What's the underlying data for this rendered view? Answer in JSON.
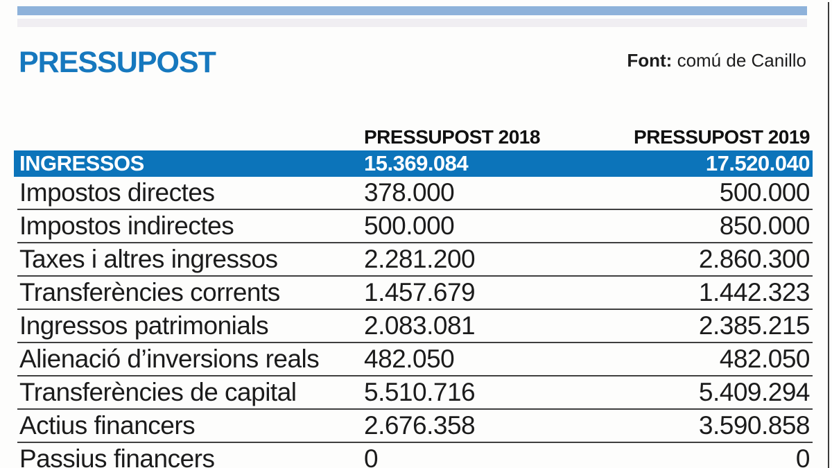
{
  "header": {
    "title": "PRESSUPOST",
    "source_label": "Font:",
    "source_value": " comú de Canillo"
  },
  "table": {
    "col_2018": "PRESSUPOST 2018",
    "col_2019": "PRESSUPOST 2019",
    "total_row": {
      "label": "INGRESSOS",
      "y2018": "15.369.084",
      "y2019": "17.520.040"
    },
    "rows": [
      {
        "label": "Impostos directes",
        "y2018": "378.000",
        "y2019": "500.000"
      },
      {
        "label": "Impostos indirectes",
        "y2018": "500.000",
        "y2019": "850.000"
      },
      {
        "label": "Taxes i altres ingressos",
        "y2018": "2.281.200",
        "y2019": "2.860.300"
      },
      {
        "label": "Transferències corrents",
        "y2018": "1.457.679",
        "y2019": "1.442.323"
      },
      {
        "label": "Ingressos patrimonials",
        "y2018": "2.083.081",
        "y2019": "2.385.215"
      },
      {
        "label": "Alienació d’inversions reals",
        "y2018": "482.050",
        "y2019": "482.050"
      },
      {
        "label": "Transferències de capital",
        "y2018": "5.510.716",
        "y2019": "5.409.294"
      },
      {
        "label": "Actius financers",
        "y2018": "2.676.358",
        "y2019": "3.590.858"
      },
      {
        "label": "Passius financers",
        "y2018": "0",
        "y2019": "0"
      }
    ]
  },
  "colors": {
    "title_blue": "#1678be",
    "row_blue": "#0c74ba",
    "top_bar_blue": "#8eb2da",
    "top_bar_grey": "#f0eef2",
    "separator": "#3f3f3f",
    "text": "#1b1b1b"
  },
  "chart_data": {
    "type": "table",
    "title": "PRESSUPOST",
    "source": "Font: comú de Canillo",
    "columns": [
      "",
      "PRESSUPOST 2018",
      "PRESSUPOST 2019"
    ],
    "rows": [
      [
        "INGRESSOS",
        15369084,
        17520040
      ],
      [
        "Impostos directes",
        378000,
        500000
      ],
      [
        "Impostos indirectes",
        500000,
        850000
      ],
      [
        "Taxes i altres ingressos",
        2281200,
        2860300
      ],
      [
        "Transferències corrents",
        1457679,
        1442323
      ],
      [
        "Ingressos patrimonials",
        2083081,
        2385215
      ],
      [
        "Alienació d’inversions reals",
        482050,
        482050
      ],
      [
        "Transferències de capital",
        5510716,
        5409294
      ],
      [
        "Actius financers",
        2676358,
        3590858
      ],
      [
        "Passius financers",
        0,
        0
      ]
    ]
  }
}
